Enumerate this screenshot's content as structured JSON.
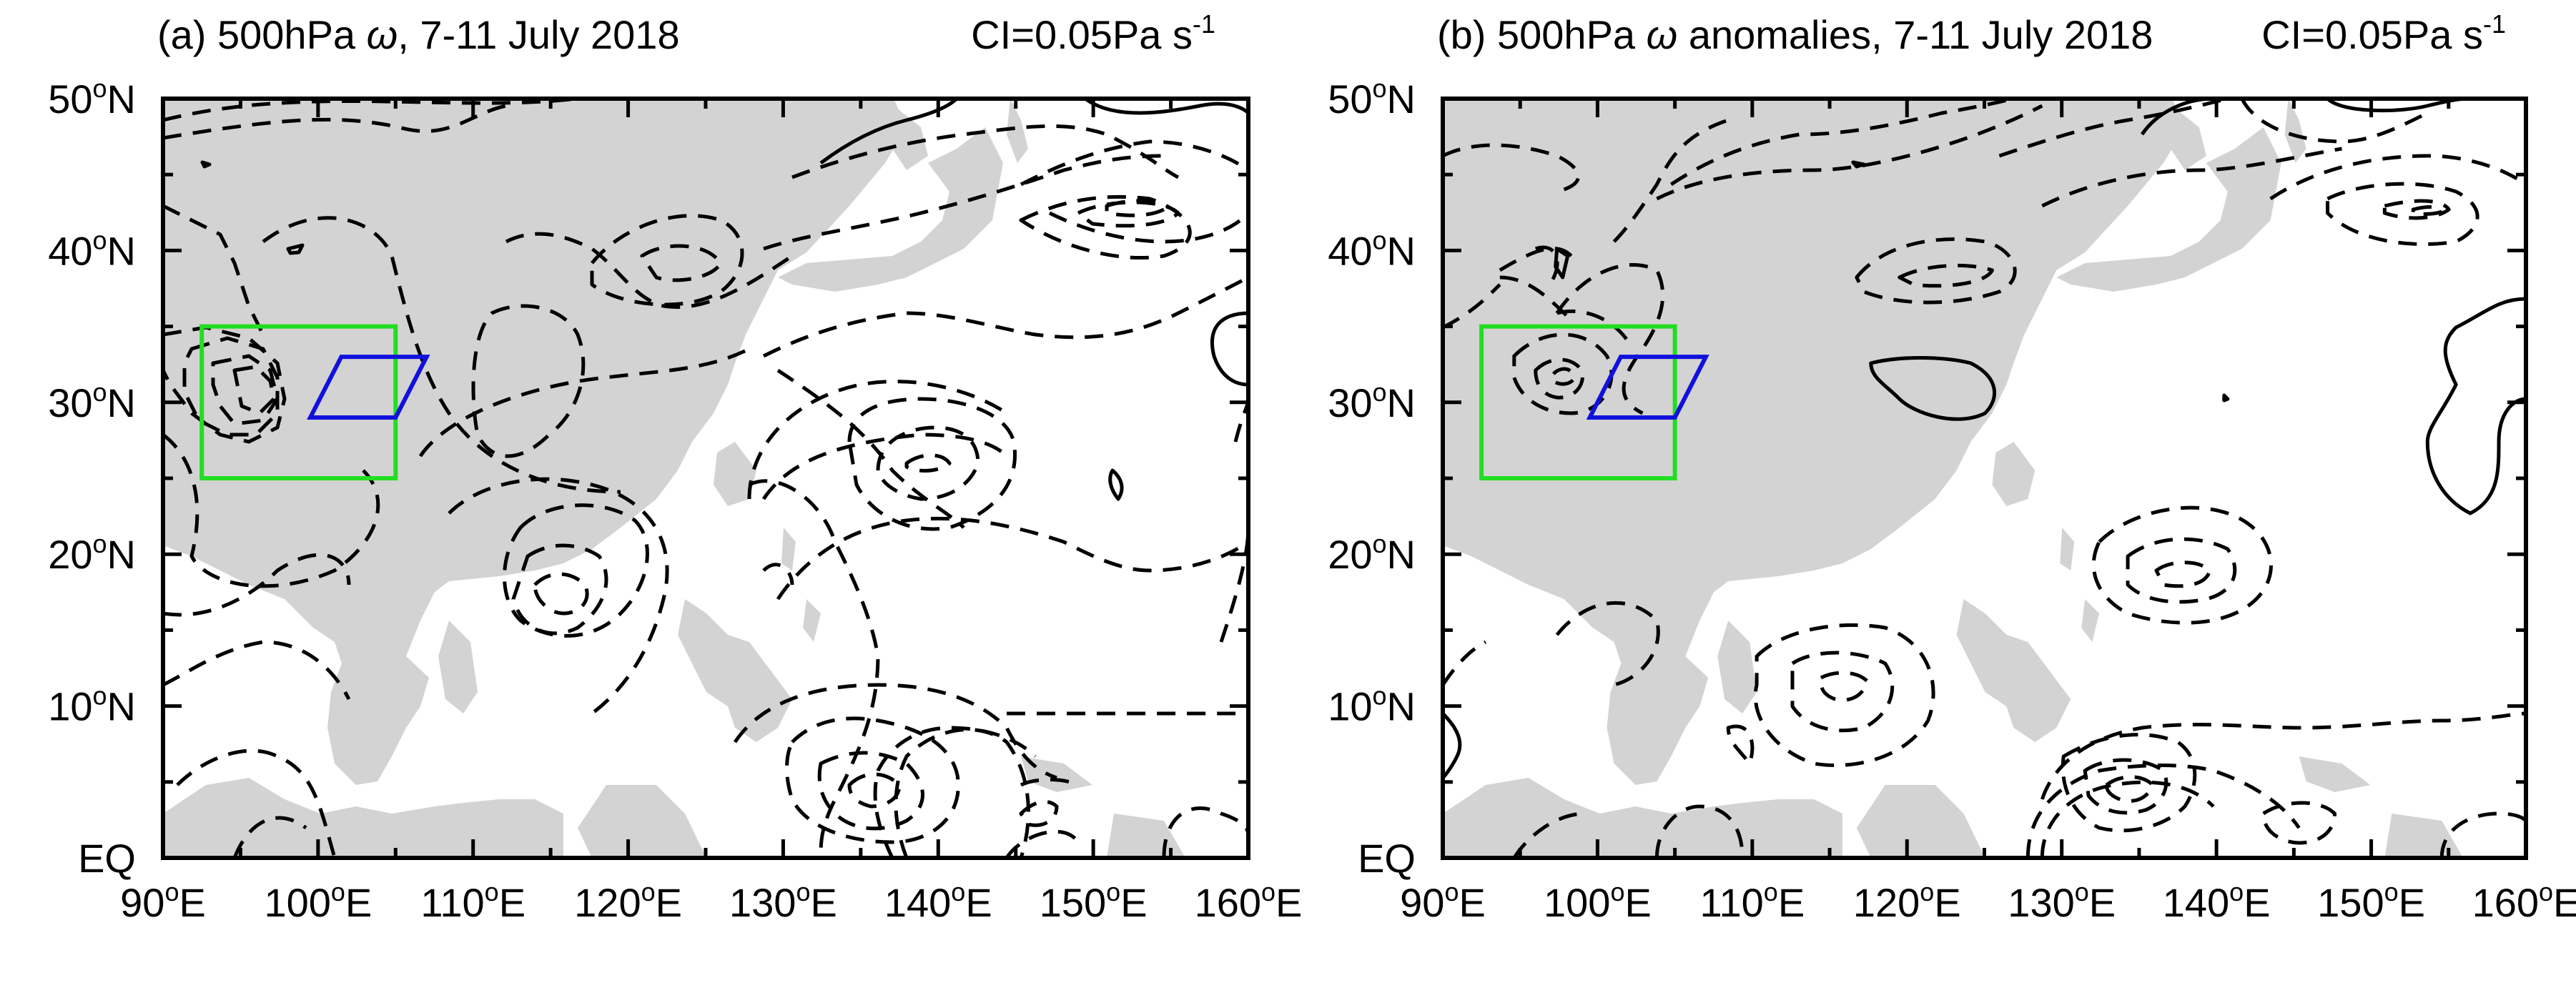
{
  "panels": [
    {
      "id": "a",
      "title_prefix": "(a) 500hPa ",
      "title_symbol": "ω",
      "title_suffix": ", 7-11 July 2018",
      "ci_text": "CI=0.05Pa s",
      "ci_exp": "-1"
    },
    {
      "id": "b",
      "title_prefix": "(b) 500hPa ",
      "title_symbol": "ω",
      "title_suffix": " anomalies, 7-11 July 2018",
      "ci_text": "CI=0.05Pa s",
      "ci_exp": "-1"
    }
  ],
  "axes": {
    "lon_labels": [
      "90",
      "100",
      "110",
      "120",
      "130",
      "140",
      "150",
      "160"
    ],
    "lon_suffix": "E",
    "lat_labels": [
      "50",
      "40",
      "30",
      "20",
      "10"
    ],
    "lat_suffix": "N",
    "equator_label": "EQ",
    "degree_mark": "o",
    "lon_range": [
      90,
      160
    ],
    "lat_range": [
      0,
      50
    ]
  },
  "boxes": {
    "green": {
      "lon": [
        92.5,
        105
      ],
      "lat": [
        25,
        35
      ],
      "color": "#22dd22"
    },
    "blue_parallelogram": {
      "corners_lonlat": [
        [
          99.5,
          29
        ],
        [
          105,
          29
        ],
        [
          107,
          33
        ],
        [
          101.5,
          33
        ]
      ],
      "color": "#1111dd"
    }
  },
  "colors": {
    "land": "#d3d3d3",
    "contour": "#000000"
  },
  "contour_style": {
    "negative": "dashed",
    "positive": "solid"
  }
}
